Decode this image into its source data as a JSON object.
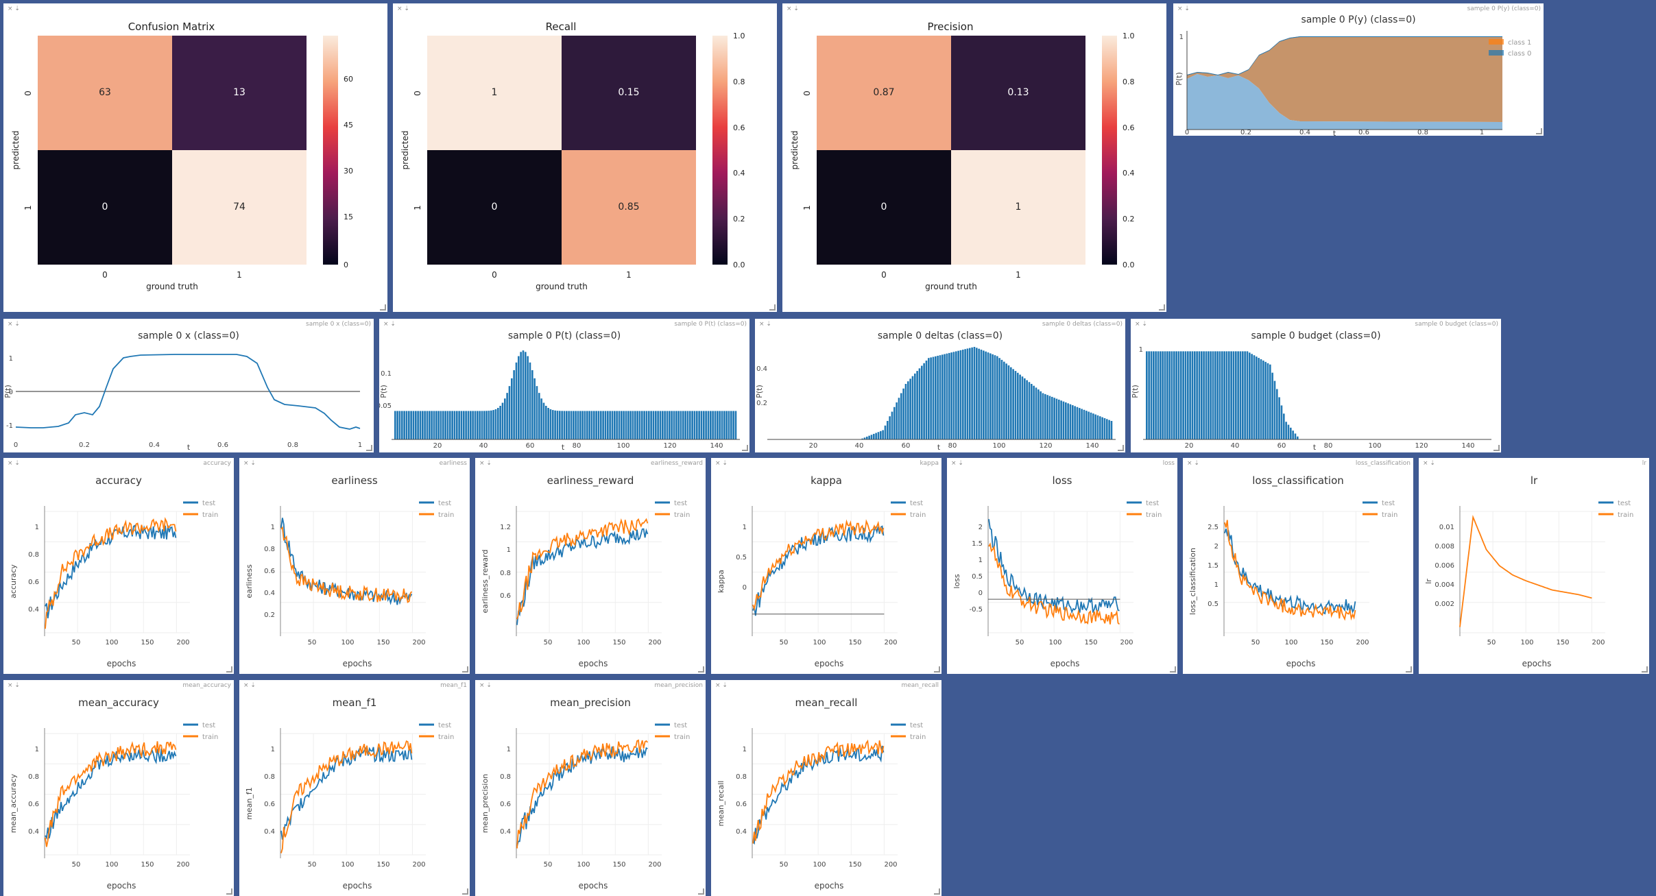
{
  "window_controls": {
    "close": "×",
    "download": "⇣"
  },
  "colors": {
    "background": "#3f5a93",
    "test": "#1f77b4",
    "train": "#ff7f0e",
    "grid": "#eeeeee"
  },
  "heatmaps": [
    {
      "title": "Confusion Matrix",
      "xlabel": "ground truth",
      "ylabel": "predicted",
      "xticks": [
        "0",
        "1"
      ],
      "yticks": [
        "0",
        "1"
      ],
      "cells": [
        [
          "63",
          "13"
        ],
        [
          "0",
          "74"
        ]
      ],
      "colorbar_ticks": [
        "60",
        "45",
        "30",
        "15",
        "0"
      ]
    },
    {
      "title": "Recall",
      "xlabel": "ground truth",
      "ylabel": "predicted",
      "xticks": [
        "0",
        "1"
      ],
      "yticks": [
        "0",
        "1"
      ],
      "cells": [
        [
          "1",
          "0.15"
        ],
        [
          "0",
          "0.85"
        ]
      ],
      "colorbar_ticks": [
        "1.0",
        "0.8",
        "0.6",
        "0.4",
        "0.2",
        "0.0"
      ]
    },
    {
      "title": "Precision",
      "xlabel": "ground truth",
      "ylabel": "predicted",
      "xticks": [
        "0",
        "1"
      ],
      "yticks": [
        "0",
        "1"
      ],
      "cells": [
        [
          "0.87",
          "0.13"
        ],
        [
          "0",
          "1"
        ]
      ],
      "colorbar_ticks": [
        "1.0",
        "0.8",
        "0.6",
        "0.4",
        "0.2",
        "0.0"
      ]
    }
  ],
  "py_panel": {
    "window_name": "sample 0 P(y) (class=0)",
    "title": "sample 0 P(y) (class=0)",
    "ylabel": "P(t)",
    "xlabel": "t",
    "xticks": [
      "0",
      "0.2",
      "0.4",
      "0.6",
      "0.8",
      "1"
    ],
    "yticks": [
      "1"
    ],
    "legend": [
      "class 1",
      "class 0"
    ]
  },
  "x_panel": {
    "window_name": "sample 0 x (class=0)",
    "title": "sample 0 x (class=0)",
    "ylabel": "P(t)",
    "xlabel": "t",
    "xticks": [
      "0",
      "0.2",
      "0.4",
      "0.6",
      "0.8",
      "1"
    ],
    "yticks": [
      "1",
      "0",
      "-1"
    ]
  },
  "pt_panel": {
    "window_name": "sample 0 P(t) (class=0)",
    "title": "sample 0 P(t) (class=0)",
    "ylabel": "P(t)",
    "xlabel": "t",
    "xticks": [
      "20",
      "40",
      "60",
      "80",
      "100",
      "120",
      "140"
    ],
    "yticks": [
      "0.1",
      "0.05"
    ]
  },
  "deltas_panel": {
    "window_name": "sample 0 deltas (class=0)",
    "title": "sample 0 deltas (class=0)",
    "ylabel": "P(t)",
    "xlabel": "t",
    "xticks": [
      "20",
      "40",
      "60",
      "80",
      "100",
      "120",
      "140"
    ],
    "yticks": [
      "0.4",
      "0.2"
    ]
  },
  "budget_panel": {
    "window_name": "sample 0 budget (class=0)",
    "title": "sample 0 budget (class=0)",
    "ylabel": "P(t)",
    "xlabel": "t",
    "xticks": [
      "20",
      "40",
      "60",
      "80",
      "100",
      "120",
      "140"
    ],
    "yticks": [
      "1"
    ]
  },
  "metric_panels": [
    {
      "window_name": "accuracy",
      "title": "accuracy",
      "ylabel": "accuracy",
      "xlabel": "epochs",
      "yticks": [
        "1",
        "0.8",
        "0.6",
        "0.4"
      ],
      "xticks": [
        "50",
        "100",
        "150",
        "200"
      ],
      "legend": [
        "test",
        "train"
      ]
    },
    {
      "window_name": "earliness",
      "title": "earliness",
      "ylabel": "earliness",
      "xlabel": "epochs",
      "yticks": [
        "1",
        "0.8",
        "0.6",
        "0.4",
        "0.2"
      ],
      "xticks": [
        "50",
        "100",
        "150",
        "200"
      ],
      "legend": [
        "test",
        "train"
      ]
    },
    {
      "window_name": "earliness_reward",
      "title": "earliness_reward",
      "ylabel": "earliness_reward",
      "xlabel": "epochs",
      "yticks": [
        "1.2",
        "1",
        "0.8",
        "0.6"
      ],
      "xticks": [
        "50",
        "100",
        "150",
        "200"
      ],
      "legend": [
        "test",
        "train"
      ]
    },
    {
      "window_name": "kappa",
      "title": "kappa",
      "ylabel": "kappa",
      "xlabel": "epochs",
      "yticks": [
        "1",
        "0.5",
        "0"
      ],
      "xticks": [
        "50",
        "100",
        "150",
        "200"
      ],
      "legend": [
        "test",
        "train"
      ]
    },
    {
      "window_name": "loss",
      "title": "loss",
      "ylabel": "loss",
      "xlabel": "epochs",
      "yticks": [
        "2",
        "1.5",
        "1",
        "0.5",
        "0",
        "-0.5"
      ],
      "xticks": [
        "50",
        "100",
        "150",
        "200"
      ],
      "legend": [
        "test",
        "train"
      ]
    },
    {
      "window_name": "loss_classification",
      "title": "loss_classification",
      "ylabel": "loss_classification",
      "xlabel": "epochs",
      "yticks": [
        "2.5",
        "2",
        "1.5",
        "1",
        "0.5"
      ],
      "xticks": [
        "50",
        "100",
        "150",
        "200"
      ],
      "legend": [
        "test",
        "train"
      ]
    },
    {
      "window_name": "lr",
      "title": "lr",
      "ylabel": "lr",
      "xlabel": "epochs",
      "yticks": [
        "0.01",
        "0.008",
        "0.006",
        "0.004",
        "0.002"
      ],
      "xticks": [
        "50",
        "100",
        "150",
        "200"
      ],
      "legend": [
        "test",
        "train"
      ]
    },
    {
      "window_name": "mean_accuracy",
      "title": "mean_accuracy",
      "ylabel": "mean_accuracy",
      "xlabel": "epochs",
      "yticks": [
        "1",
        "0.8",
        "0.6",
        "0.4"
      ],
      "xticks": [
        "50",
        "100",
        "150",
        "200"
      ],
      "legend": [
        "test",
        "train"
      ]
    },
    {
      "window_name": "mean_f1",
      "title": "mean_f1",
      "ylabel": "mean_f1",
      "xlabel": "epochs",
      "yticks": [
        "1",
        "0.8",
        "0.6",
        "0.4"
      ],
      "xticks": [
        "50",
        "100",
        "150",
        "200"
      ],
      "legend": [
        "test",
        "train"
      ]
    },
    {
      "window_name": "mean_precision",
      "title": "mean_precision",
      "ylabel": "mean_precision",
      "xlabel": "epochs",
      "yticks": [
        "1",
        "0.8",
        "0.6",
        "0.4"
      ],
      "xticks": [
        "50",
        "100",
        "150",
        "200"
      ],
      "legend": [
        "test",
        "train"
      ]
    },
    {
      "window_name": "mean_recall",
      "title": "mean_recall",
      "ylabel": "mean_recall",
      "xlabel": "epochs",
      "yticks": [
        "1",
        "0.8",
        "0.6",
        "0.4"
      ],
      "xticks": [
        "50",
        "100",
        "150",
        "200"
      ],
      "legend": [
        "test",
        "train"
      ]
    }
  ],
  "chart_data": [
    {
      "type": "heatmap",
      "title": "Confusion Matrix",
      "xlabel": "ground truth",
      "ylabel": "predicted",
      "x": [
        "0",
        "1"
      ],
      "y": [
        "0",
        "1"
      ],
      "values": [
        [
          63,
          13
        ],
        [
          0,
          74
        ]
      ],
      "colorbar_range": [
        0,
        74
      ]
    },
    {
      "type": "heatmap",
      "title": "Recall",
      "xlabel": "ground truth",
      "ylabel": "predicted",
      "x": [
        "0",
        "1"
      ],
      "y": [
        "0",
        "1"
      ],
      "values": [
        [
          1,
          0.15
        ],
        [
          0,
          0.85
        ]
      ],
      "colorbar_range": [
        0,
        1
      ]
    },
    {
      "type": "heatmap",
      "title": "Precision",
      "xlabel": "ground truth",
      "ylabel": "predicted",
      "x": [
        "0",
        "1"
      ],
      "y": [
        "0",
        "1"
      ],
      "values": [
        [
          0.87,
          0.13
        ],
        [
          0,
          1
        ]
      ],
      "colorbar_range": [
        0,
        1
      ]
    },
    {
      "type": "area",
      "title": "sample 0 P(y) (class=0)",
      "xlabel": "t",
      "ylabel": "P(t)",
      "xlim": [
        0,
        1
      ],
      "ylim": [
        0,
        1
      ],
      "series": [
        {
          "name": "class 0",
          "x": [
            0,
            0.05,
            0.1,
            0.15,
            0.2,
            0.25,
            0.3,
            0.35,
            1
          ],
          "values": [
            0.45,
            0.47,
            0.45,
            0.47,
            0.3,
            0.1,
            0.03,
            0.02,
            0.02
          ]
        },
        {
          "name": "class 1",
          "x": [
            0,
            0.05,
            0.1,
            0.15,
            0.2,
            0.25,
            0.3,
            0.35,
            1
          ],
          "values": [
            0.55,
            0.53,
            0.55,
            0.53,
            0.7,
            0.9,
            0.97,
            0.98,
            0.98
          ]
        }
      ]
    },
    {
      "type": "line",
      "title": "sample 0 x (class=0)",
      "xlabel": "t",
      "ylabel": "P(t)",
      "xlim": [
        0,
        1
      ],
      "ylim": [
        -1.3,
        1.3
      ],
      "x": [
        0,
        0.08,
        0.13,
        0.17,
        0.22,
        0.26,
        0.3,
        0.32,
        0.4,
        0.5,
        0.62,
        0.66,
        0.7,
        0.74,
        0.78,
        0.84,
        0.9,
        0.94,
        0.97,
        1
      ],
      "values": [
        -1.05,
        -1.07,
        -1.0,
        -0.7,
        -0.7,
        -0.3,
        0.55,
        1.05,
        1.15,
        1.18,
        1.2,
        1.0,
        0.3,
        -0.5,
        -0.75,
        -0.8,
        -0.9,
        -1.25,
        -1.15,
        -1.2
      ],
      "baseline": 0
    },
    {
      "type": "bar",
      "title": "sample 0 P(t) (class=0)",
      "xlabel": "t",
      "ylabel": "P(t)",
      "xlim": [
        0,
        150
      ],
      "ylim": [
        0,
        0.13
      ],
      "peak": {
        "x": 57,
        "value": 0.125
      },
      "plateau": 0.04
    },
    {
      "type": "bar",
      "title": "sample 0 deltas (class=0)",
      "xlabel": "t",
      "ylabel": "P(t)",
      "xlim": [
        0,
        150
      ],
      "ylim": [
        0,
        0.5
      ],
      "profile": [
        {
          "x": 40,
          "value": 0
        },
        {
          "x": 50,
          "value": 0.05
        },
        {
          "x": 60,
          "value": 0.3
        },
        {
          "x": 70,
          "value": 0.44
        },
        {
          "x": 90,
          "value": 0.5
        },
        {
          "x": 100,
          "value": 0.45
        },
        {
          "x": 120,
          "value": 0.25
        },
        {
          "x": 150,
          "value": 0.1
        }
      ]
    },
    {
      "type": "bar",
      "title": "sample 0 budget (class=0)",
      "xlabel": "t",
      "ylabel": "P(t)",
      "xlim": [
        0,
        150
      ],
      "ylim": [
        0,
        1.05
      ],
      "profile": [
        {
          "x": 0,
          "value": 1
        },
        {
          "x": 45,
          "value": 1
        },
        {
          "x": 55,
          "value": 0.85
        },
        {
          "x": 62,
          "value": 0.2
        },
        {
          "x": 68,
          "value": 0
        }
      ]
    },
    {
      "type": "line",
      "title": "accuracy",
      "xlabel": "epochs",
      "ylabel": "accuracy",
      "xlim": [
        0,
        210
      ],
      "ylim": [
        0.35,
        1.05
      ],
      "series": [
        {
          "name": "test",
          "values": [
            0.45,
            0.62,
            0.75,
            0.85,
            0.9,
            0.93,
            0.93,
            0.92,
            0.94
          ]
        },
        {
          "name": "train",
          "values": [
            0.4,
            0.7,
            0.8,
            0.88,
            0.92,
            0.95,
            0.96,
            0.97,
            0.97
          ]
        }
      ]
    },
    {
      "type": "line",
      "title": "earliness",
      "xlabel": "epochs",
      "ylabel": "earliness",
      "xlim": [
        0,
        210
      ],
      "ylim": [
        0.15,
        1.05
      ],
      "series": [
        {
          "name": "test",
          "values": [
            1.0,
            0.6,
            0.5,
            0.48,
            0.45,
            0.43,
            0.42,
            0.41,
            0.41
          ]
        },
        {
          "name": "train",
          "values": [
            0.95,
            0.55,
            0.5,
            0.47,
            0.45,
            0.44,
            0.43,
            0.43,
            0.42
          ]
        }
      ]
    },
    {
      "type": "line",
      "title": "earliness_reward",
      "xlabel": "epochs",
      "ylabel": "earliness_reward",
      "xlim": [
        0,
        210
      ],
      "ylim": [
        0.55,
        1.3
      ],
      "series": [
        {
          "name": "test",
          "values": [
            0.6,
            0.98,
            1.03,
            1.07,
            1.1,
            1.12,
            1.14,
            1.15,
            1.16
          ]
        },
        {
          "name": "train",
          "values": [
            0.6,
            1.0,
            1.08,
            1.12,
            1.15,
            1.18,
            1.2,
            1.21,
            1.22
          ]
        }
      ]
    },
    {
      "type": "line",
      "title": "kappa",
      "xlabel": "epochs",
      "ylabel": "kappa",
      "xlim": [
        0,
        210
      ],
      "ylim": [
        -0.2,
        1.1
      ],
      "series": [
        {
          "name": "test",
          "values": [
            0.0,
            0.4,
            0.6,
            0.75,
            0.82,
            0.86,
            0.86,
            0.85,
            0.88
          ]
        },
        {
          "name": "train",
          "values": [
            0.0,
            0.45,
            0.65,
            0.78,
            0.85,
            0.9,
            0.92,
            0.94,
            0.95
          ]
        }
      ]
    },
    {
      "type": "line",
      "title": "loss",
      "xlabel": "epochs",
      "ylabel": "loss",
      "xlim": [
        0,
        210
      ],
      "ylim": [
        -0.8,
        2.1
      ],
      "series": [
        {
          "name": "test",
          "values": [
            1.8,
            0.6,
            0.2,
            0.0,
            -0.1,
            -0.15,
            -0.15,
            -0.15,
            -0.1
          ]
        },
        {
          "name": "train",
          "values": [
            1.5,
            0.3,
            0.0,
            -0.2,
            -0.3,
            -0.35,
            -0.4,
            -0.45,
            -0.45
          ]
        }
      ]
    },
    {
      "type": "line",
      "title": "loss_classification",
      "xlabel": "epochs",
      "ylabel": "loss_classification",
      "xlim": [
        0,
        210
      ],
      "ylim": [
        0.4,
        2.6
      ],
      "series": [
        {
          "name": "test",
          "values": [
            2.4,
            1.5,
            1.2,
            1.05,
            0.95,
            0.9,
            0.88,
            0.88,
            0.9
          ]
        },
        {
          "name": "train",
          "values": [
            2.5,
            1.4,
            1.1,
            0.95,
            0.85,
            0.8,
            0.78,
            0.75,
            0.72
          ]
        }
      ]
    },
    {
      "type": "line",
      "title": "lr",
      "xlabel": "epochs",
      "ylabel": "lr",
      "xlim": [
        0,
        210
      ],
      "ylim": [
        0,
        0.0105
      ],
      "series": [
        {
          "name": "train",
          "x": [
            0,
            20,
            40,
            60,
            80,
            100,
            120,
            140,
            160,
            180,
            200
          ],
          "values": [
            0.0005,
            0.01,
            0.0072,
            0.0058,
            0.005,
            0.0045,
            0.0041,
            0.0037,
            0.0035,
            0.0033,
            0.003
          ]
        }
      ]
    },
    {
      "type": "line",
      "title": "mean_accuracy",
      "xlabel": "epochs",
      "ylabel": "mean_accuracy",
      "xlim": [
        0,
        210
      ],
      "ylim": [
        0.35,
        1.05
      ],
      "series": [
        {
          "name": "test",
          "values": [
            0.45,
            0.62,
            0.75,
            0.85,
            0.9,
            0.93,
            0.93,
            0.92,
            0.94
          ]
        },
        {
          "name": "train",
          "values": [
            0.4,
            0.7,
            0.8,
            0.88,
            0.92,
            0.95,
            0.96,
            0.97,
            0.97
          ]
        }
      ]
    },
    {
      "type": "line",
      "title": "mean_f1",
      "xlabel": "epochs",
      "ylabel": "mean_f1",
      "xlim": [
        0,
        210
      ],
      "ylim": [
        0.35,
        1.05
      ],
      "series": [
        {
          "name": "test",
          "values": [
            0.45,
            0.62,
            0.75,
            0.85,
            0.9,
            0.93,
            0.93,
            0.92,
            0.94
          ]
        },
        {
          "name": "train",
          "values": [
            0.4,
            0.7,
            0.8,
            0.88,
            0.92,
            0.95,
            0.96,
            0.97,
            0.97
          ]
        }
      ]
    },
    {
      "type": "line",
      "title": "mean_precision",
      "xlabel": "epochs",
      "ylabel": "mean_precision",
      "xlim": [
        0,
        210
      ],
      "ylim": [
        0.35,
        1.05
      ],
      "series": [
        {
          "name": "test",
          "values": [
            0.45,
            0.62,
            0.75,
            0.85,
            0.9,
            0.93,
            0.93,
            0.92,
            0.94
          ]
        },
        {
          "name": "train",
          "values": [
            0.4,
            0.7,
            0.8,
            0.88,
            0.92,
            0.95,
            0.96,
            0.97,
            0.97
          ]
        }
      ]
    },
    {
      "type": "line",
      "title": "mean_recall",
      "xlabel": "epochs",
      "ylabel": "mean_recall",
      "xlim": [
        0,
        210
      ],
      "ylim": [
        0.35,
        1.05
      ],
      "series": [
        {
          "name": "test",
          "values": [
            0.45,
            0.62,
            0.75,
            0.85,
            0.9,
            0.93,
            0.93,
            0.92,
            0.94
          ]
        },
        {
          "name": "train",
          "values": [
            0.4,
            0.7,
            0.8,
            0.88,
            0.92,
            0.95,
            0.96,
            0.97,
            0.97
          ]
        }
      ]
    }
  ]
}
